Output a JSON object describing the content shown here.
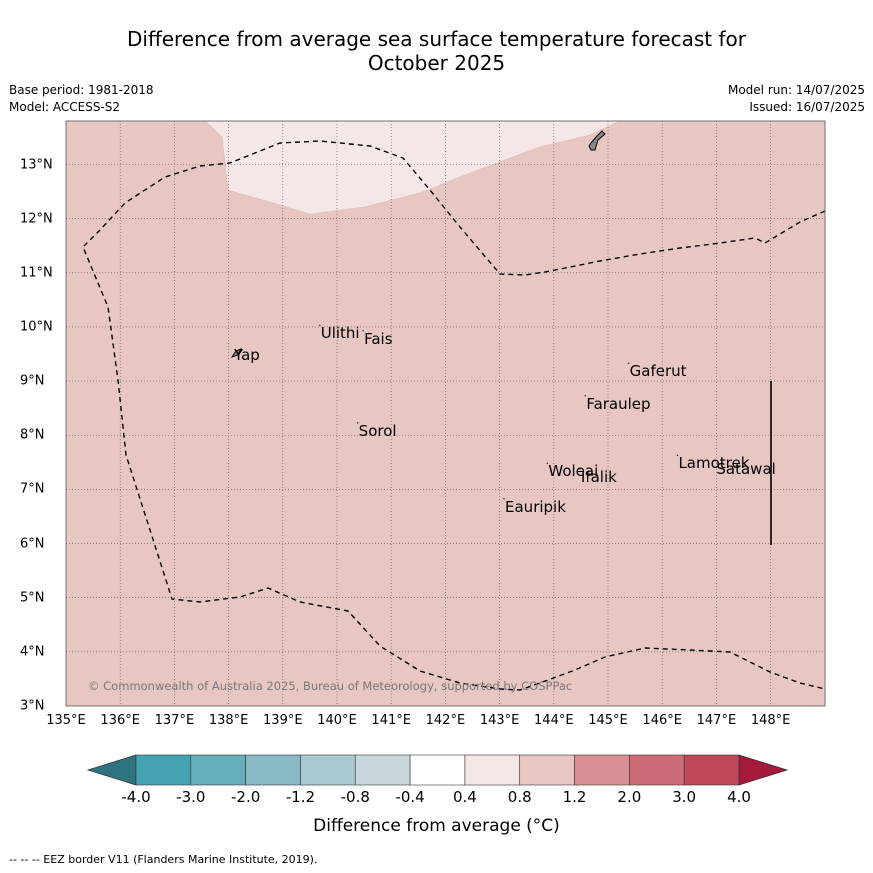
{
  "title": {
    "line1": "Difference from average sea surface temperature forecast for",
    "line2": "October 2025"
  },
  "meta": {
    "base_period": "Base period: 1981-2018",
    "model": "Model: ACCESS-S2",
    "model_run": "Model run: 14/07/2025",
    "issued": "Issued: 16/07/2025"
  },
  "map": {
    "lon_ticks": [
      "135°E",
      "136°E",
      "137°E",
      "138°E",
      "139°E",
      "140°E",
      "141°E",
      "142°E",
      "143°E",
      "144°E",
      "145°E",
      "146°E",
      "147°E",
      "148°E"
    ],
    "lat_ticks": [
      "13°N",
      "12°N",
      "11°N",
      "10°N",
      "9°N",
      "8°N",
      "7°N",
      "6°N",
      "5°N",
      "4°N",
      "3°N"
    ],
    "lon_range": [
      135,
      149
    ],
    "lat_range": [
      3,
      13.8
    ],
    "places": [
      {
        "name": "Yap",
        "lon": 138.1,
        "lat": 9.5
      },
      {
        "name": "Ulithi",
        "lon": 139.7,
        "lat": 9.9
      },
      {
        "name": "Fais",
        "lon": 140.5,
        "lat": 9.8
      },
      {
        "name": "Gaferut",
        "lon": 145.4,
        "lat": 9.2
      },
      {
        "name": "Faraulep",
        "lon": 144.6,
        "lat": 8.6
      },
      {
        "name": "Sorol",
        "lon": 140.4,
        "lat": 8.1
      },
      {
        "name": "Lamotrek",
        "lon": 146.3,
        "lat": 7.5
      },
      {
        "name": "Satawal",
        "lon": 147.0,
        "lat": 7.4
      },
      {
        "name": "Woleai",
        "lon": 143.9,
        "lat": 7.35
      },
      {
        "name": "Ifalik",
        "lon": 144.5,
        "lat": 7.25
      },
      {
        "name": "Eauripik",
        "lon": 143.1,
        "lat": 6.7
      }
    ],
    "copyright": "© Commonwealth of Australia 2025, Bureau of Meteorology, supported by COSPPac",
    "colors": {
      "background_anomaly": "#e8c7c3",
      "north_anomaly": "#f5e7e5",
      "land": "#888888",
      "eez_border": "#000000"
    }
  },
  "colorbar": {
    "ticks": [
      "-4.0",
      "-3.0",
      "-2.0",
      "-1.2",
      "-0.8",
      "-0.4",
      "0.4",
      "0.8",
      "1.2",
      "2.0",
      "3.0",
      "4.0"
    ],
    "colors": [
      "#2d7480",
      "#45a2b2",
      "#66aebb",
      "#88b9c4",
      "#a8c9cf",
      "#c8d8dc",
      "#ffffff",
      "#f5e7e5",
      "#e8c7c3",
      "#d88f95",
      "#cd6c76",
      "#c14758",
      "#a5193a"
    ],
    "label": "Difference from average (°C)"
  },
  "footnote": "-- -- -- EEZ border V11 (Flanders Marine Institute, 2019)."
}
